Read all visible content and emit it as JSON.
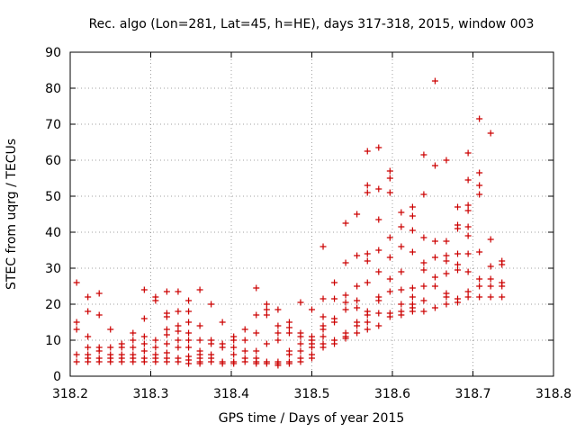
{
  "chart_data": {
    "type": "scatter",
    "title": "Rec. algo (Lon=281, Lat=45, h=HE), days 317-318, 2015, window 003",
    "xlabel": "GPS time / Days of year 2015",
    "ylabel": "STEC from uqrg / TECUs",
    "xlim": [
      318.2,
      318.8
    ],
    "ylim": [
      0,
      90
    ],
    "x_ticks": [
      "318.2",
      "318.3",
      "318.4",
      "318.5",
      "318.6",
      "318.7",
      "318.8"
    ],
    "y_ticks": [
      "0",
      "10",
      "20",
      "30",
      "40",
      "50",
      "60",
      "70",
      "80",
      "90"
    ],
    "x_tick_values": [
      318.2,
      318.3,
      318.4,
      318.5,
      318.6,
      318.7,
      318.8
    ],
    "y_tick_values": [
      0,
      10,
      20,
      30,
      40,
      50,
      60,
      70,
      80,
      90
    ],
    "grid": true,
    "marker": "plus",
    "color": "#cc0000",
    "series": [
      {
        "points": [
          [
            318.208,
            26
          ],
          [
            318.208,
            15
          ],
          [
            318.208,
            13
          ],
          [
            318.208,
            6
          ],
          [
            318.208,
            4
          ],
          [
            318.222,
            22
          ],
          [
            318.222,
            18
          ],
          [
            318.222,
            11
          ],
          [
            318.222,
            8
          ],
          [
            318.222,
            6
          ],
          [
            318.222,
            5
          ],
          [
            318.222,
            4
          ],
          [
            318.236,
            23
          ],
          [
            318.236,
            17
          ],
          [
            318.236,
            8
          ],
          [
            318.236,
            7
          ],
          [
            318.236,
            5
          ],
          [
            318.236,
            4
          ],
          [
            318.25,
            13
          ],
          [
            318.25,
            8
          ],
          [
            318.25,
            6
          ],
          [
            318.25,
            5
          ],
          [
            318.25,
            4
          ],
          [
            318.264,
            9
          ],
          [
            318.264,
            8
          ],
          [
            318.264,
            6
          ],
          [
            318.264,
            5
          ],
          [
            318.264,
            4
          ],
          [
            318.278,
            12
          ],
          [
            318.278,
            10
          ],
          [
            318.278,
            8
          ],
          [
            318.278,
            6
          ],
          [
            318.278,
            5
          ],
          [
            318.278,
            4
          ],
          [
            318.292,
            24
          ],
          [
            318.292,
            16
          ],
          [
            318.292,
            11
          ],
          [
            318.292,
            9
          ],
          [
            318.292,
            7
          ],
          [
            318.292,
            5
          ],
          [
            318.292,
            4
          ],
          [
            318.306,
            22
          ],
          [
            318.306,
            21
          ],
          [
            318.306,
            10
          ],
          [
            318.306,
            8
          ],
          [
            318.306,
            6
          ],
          [
            318.306,
            5
          ],
          [
            318.306,
            4
          ],
          [
            318.32,
            23.5
          ],
          [
            318.32,
            17.5
          ],
          [
            318.32,
            16.5
          ],
          [
            318.32,
            13
          ],
          [
            318.32,
            11.5
          ],
          [
            318.32,
            9
          ],
          [
            318.32,
            6.5
          ],
          [
            318.32,
            5
          ],
          [
            318.32,
            4
          ],
          [
            318.334,
            23.5
          ],
          [
            318.334,
            18
          ],
          [
            318.334,
            14
          ],
          [
            318.334,
            12.5
          ],
          [
            318.334,
            10
          ],
          [
            318.334,
            8
          ],
          [
            318.334,
            5
          ],
          [
            318.334,
            4
          ],
          [
            318.347,
            21
          ],
          [
            318.347,
            18
          ],
          [
            318.347,
            15
          ],
          [
            318.347,
            12
          ],
          [
            318.347,
            10
          ],
          [
            318.347,
            8
          ],
          [
            318.347,
            5.5
          ],
          [
            318.347,
            4.5
          ],
          [
            318.347,
            3.5
          ],
          [
            318.361,
            24
          ],
          [
            318.361,
            14
          ],
          [
            318.361,
            10
          ],
          [
            318.361,
            7
          ],
          [
            318.361,
            6
          ],
          [
            318.361,
            5
          ],
          [
            318.361,
            4
          ],
          [
            318.361,
            3.5
          ],
          [
            318.375,
            20
          ],
          [
            318.375,
            10
          ],
          [
            318.375,
            9
          ],
          [
            318.375,
            6
          ],
          [
            318.375,
            5
          ],
          [
            318.375,
            4
          ],
          [
            318.389,
            15
          ],
          [
            318.389,
            9
          ],
          [
            318.389,
            8
          ],
          [
            318.389,
            4
          ],
          [
            318.389,
            3.5
          ],
          [
            318.403,
            11
          ],
          [
            318.403,
            10
          ],
          [
            318.403,
            8
          ],
          [
            318.403,
            6
          ],
          [
            318.403,
            4
          ],
          [
            318.403,
            3.5
          ],
          [
            318.417,
            13
          ],
          [
            318.417,
            10
          ],
          [
            318.417,
            7
          ],
          [
            318.417,
            5
          ],
          [
            318.417,
            4
          ],
          [
            318.431,
            24.5
          ],
          [
            318.431,
            17
          ],
          [
            318.431,
            12
          ],
          [
            318.431,
            7
          ],
          [
            318.431,
            5
          ],
          [
            318.431,
            4
          ],
          [
            318.431,
            3.5
          ],
          [
            318.444,
            20
          ],
          [
            318.444,
            18.5
          ],
          [
            318.444,
            17
          ],
          [
            318.444,
            9
          ],
          [
            318.444,
            4
          ],
          [
            318.444,
            3.5
          ],
          [
            318.458,
            18.5
          ],
          [
            318.458,
            14
          ],
          [
            318.458,
            12
          ],
          [
            318.458,
            10
          ],
          [
            318.458,
            4
          ],
          [
            318.458,
            3.5
          ],
          [
            318.458,
            3
          ],
          [
            318.472,
            15
          ],
          [
            318.472,
            13.5
          ],
          [
            318.472,
            12
          ],
          [
            318.472,
            7
          ],
          [
            318.472,
            6
          ],
          [
            318.472,
            4
          ],
          [
            318.472,
            3.5
          ],
          [
            318.486,
            20.5
          ],
          [
            318.486,
            12
          ],
          [
            318.486,
            11
          ],
          [
            318.486,
            9
          ],
          [
            318.486,
            7
          ],
          [
            318.486,
            5
          ],
          [
            318.486,
            4
          ],
          [
            318.5,
            18.5
          ],
          [
            318.5,
            11
          ],
          [
            318.5,
            10
          ],
          [
            318.5,
            9
          ],
          [
            318.5,
            8
          ],
          [
            318.5,
            6
          ],
          [
            318.5,
            5
          ],
          [
            318.514,
            36
          ],
          [
            318.514,
            21.5
          ],
          [
            318.514,
            16.5
          ],
          [
            318.514,
            14
          ],
          [
            318.514,
            13
          ],
          [
            318.514,
            11
          ],
          [
            318.514,
            9
          ],
          [
            318.514,
            8
          ],
          [
            318.528,
            26
          ],
          [
            318.528,
            21.5
          ],
          [
            318.528,
            16
          ],
          [
            318.528,
            15
          ],
          [
            318.528,
            10
          ],
          [
            318.528,
            9
          ],
          [
            318.542,
            42.5
          ],
          [
            318.542,
            31.5
          ],
          [
            318.542,
            22.5
          ],
          [
            318.542,
            20.5
          ],
          [
            318.542,
            18.5
          ],
          [
            318.542,
            12
          ],
          [
            318.542,
            11
          ],
          [
            318.542,
            10.5
          ],
          [
            318.556,
            45
          ],
          [
            318.556,
            33.5
          ],
          [
            318.556,
            25
          ],
          [
            318.556,
            21
          ],
          [
            318.556,
            19
          ],
          [
            318.556,
            15
          ],
          [
            318.556,
            14
          ],
          [
            318.556,
            12
          ],
          [
            318.569,
            62.5
          ],
          [
            318.569,
            53
          ],
          [
            318.569,
            51
          ],
          [
            318.569,
            34
          ],
          [
            318.569,
            32
          ],
          [
            318.569,
            26
          ],
          [
            318.569,
            18
          ],
          [
            318.569,
            17
          ],
          [
            318.569,
            15
          ],
          [
            318.569,
            13
          ],
          [
            318.583,
            63.5
          ],
          [
            318.583,
            52
          ],
          [
            318.583,
            43.5
          ],
          [
            318.583,
            35
          ],
          [
            318.583,
            29
          ],
          [
            318.583,
            22
          ],
          [
            318.583,
            21
          ],
          [
            318.583,
            17.5
          ],
          [
            318.583,
            14
          ],
          [
            318.597,
            57
          ],
          [
            318.597,
            55
          ],
          [
            318.597,
            51
          ],
          [
            318.597,
            38.5
          ],
          [
            318.597,
            33
          ],
          [
            318.597,
            27
          ],
          [
            318.597,
            23.5
          ],
          [
            318.597,
            17.5
          ],
          [
            318.597,
            16.5
          ],
          [
            318.611,
            45.5
          ],
          [
            318.611,
            41.5
          ],
          [
            318.611,
            36
          ],
          [
            318.611,
            29
          ],
          [
            318.611,
            24
          ],
          [
            318.611,
            20
          ],
          [
            318.611,
            18
          ],
          [
            318.611,
            17
          ],
          [
            318.625,
            47
          ],
          [
            318.625,
            44.5
          ],
          [
            318.625,
            40.5
          ],
          [
            318.625,
            34.5
          ],
          [
            318.625,
            24.5
          ],
          [
            318.625,
            22
          ],
          [
            318.625,
            20
          ],
          [
            318.625,
            19
          ],
          [
            318.625,
            18
          ],
          [
            318.639,
            61.5
          ],
          [
            318.639,
            50.5
          ],
          [
            318.639,
            38.5
          ],
          [
            318.639,
            31.5
          ],
          [
            318.639,
            29.5
          ],
          [
            318.639,
            25
          ],
          [
            318.639,
            21
          ],
          [
            318.639,
            18
          ],
          [
            318.653,
            82
          ],
          [
            318.653,
            58.5
          ],
          [
            318.653,
            37.5
          ],
          [
            318.653,
            33
          ],
          [
            318.653,
            27.5
          ],
          [
            318.653,
            25
          ],
          [
            318.653,
            19
          ],
          [
            318.667,
            60
          ],
          [
            318.667,
            37.5
          ],
          [
            318.667,
            33.5
          ],
          [
            318.667,
            32
          ],
          [
            318.667,
            28.5
          ],
          [
            318.667,
            23
          ],
          [
            318.667,
            22
          ],
          [
            318.667,
            20
          ],
          [
            318.681,
            47
          ],
          [
            318.681,
            42
          ],
          [
            318.681,
            41
          ],
          [
            318.681,
            34
          ],
          [
            318.681,
            31
          ],
          [
            318.681,
            29.5
          ],
          [
            318.681,
            21.5
          ],
          [
            318.681,
            20.5
          ],
          [
            318.694,
            62
          ],
          [
            318.694,
            54.5
          ],
          [
            318.694,
            47.5
          ],
          [
            318.694,
            46
          ],
          [
            318.694,
            41.5
          ],
          [
            318.694,
            39
          ],
          [
            318.694,
            34
          ],
          [
            318.694,
            29
          ],
          [
            318.694,
            23.5
          ],
          [
            318.694,
            22
          ],
          [
            318.708,
            71.5
          ],
          [
            318.708,
            56.5
          ],
          [
            318.708,
            53
          ],
          [
            318.708,
            50.5
          ],
          [
            318.708,
            34.5
          ],
          [
            318.708,
            27
          ],
          [
            318.708,
            25
          ],
          [
            318.708,
            22
          ],
          [
            318.722,
            67.5
          ],
          [
            318.722,
            38
          ],
          [
            318.722,
            30.5
          ],
          [
            318.722,
            27
          ],
          [
            318.722,
            25
          ],
          [
            318.722,
            22
          ],
          [
            318.736,
            32
          ],
          [
            318.736,
            31
          ],
          [
            318.736,
            26
          ],
          [
            318.736,
            25
          ],
          [
            318.736,
            22
          ]
        ]
      }
    ]
  }
}
